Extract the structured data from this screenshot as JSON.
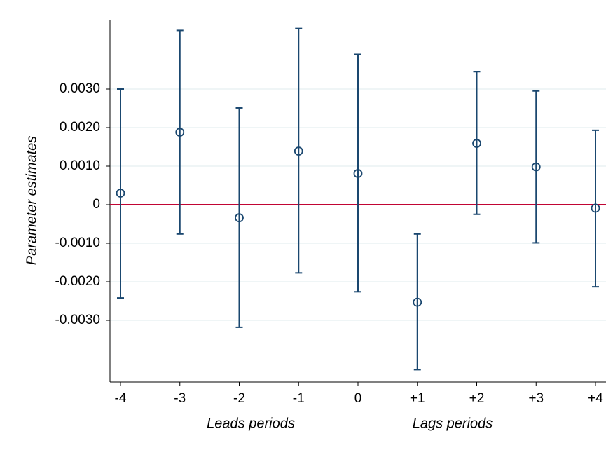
{
  "chart_data": {
    "type": "errorbar",
    "y_label": "Parameter estimates",
    "annotations": [
      "Leads periods",
      "Lags periods"
    ],
    "categories": [
      "-4",
      "-3",
      "-2",
      "-1",
      "0",
      "+1",
      "+2",
      "+3",
      "+4"
    ],
    "values": [
      0.0003,
      0.00188,
      -0.00034,
      0.00139,
      0.00081,
      -0.00253,
      0.00159,
      0.00098,
      -9e-05
    ],
    "lower": [
      -0.00242,
      -0.00076,
      -0.00318,
      -0.00177,
      -0.00226,
      -0.00428,
      -0.00025,
      -0.00099,
      -0.00213
    ],
    "upper": [
      0.003,
      0.00452,
      0.00251,
      0.00457,
      0.0039,
      -0.00076,
      0.00345,
      0.00295,
      0.00193
    ],
    "color": "#1a476f",
    "reference_line": {
      "value": 0,
      "color": "#c10534"
    },
    "ylim": [
      -0.0046,
      0.0048
    ],
    "yticks": [
      {
        "value": -0.003,
        "label": "-0.0030"
      },
      {
        "value": -0.002,
        "label": "-0.0020"
      },
      {
        "value": -0.001,
        "label": "-0.0010"
      },
      0,
      {
        "value": 0.001,
        "label": "0.0010"
      },
      {
        "value": 0.002,
        "label": "0.0020"
      },
      {
        "value": 0.003,
        "label": "0.0030"
      }
    ],
    "grid": true
  }
}
